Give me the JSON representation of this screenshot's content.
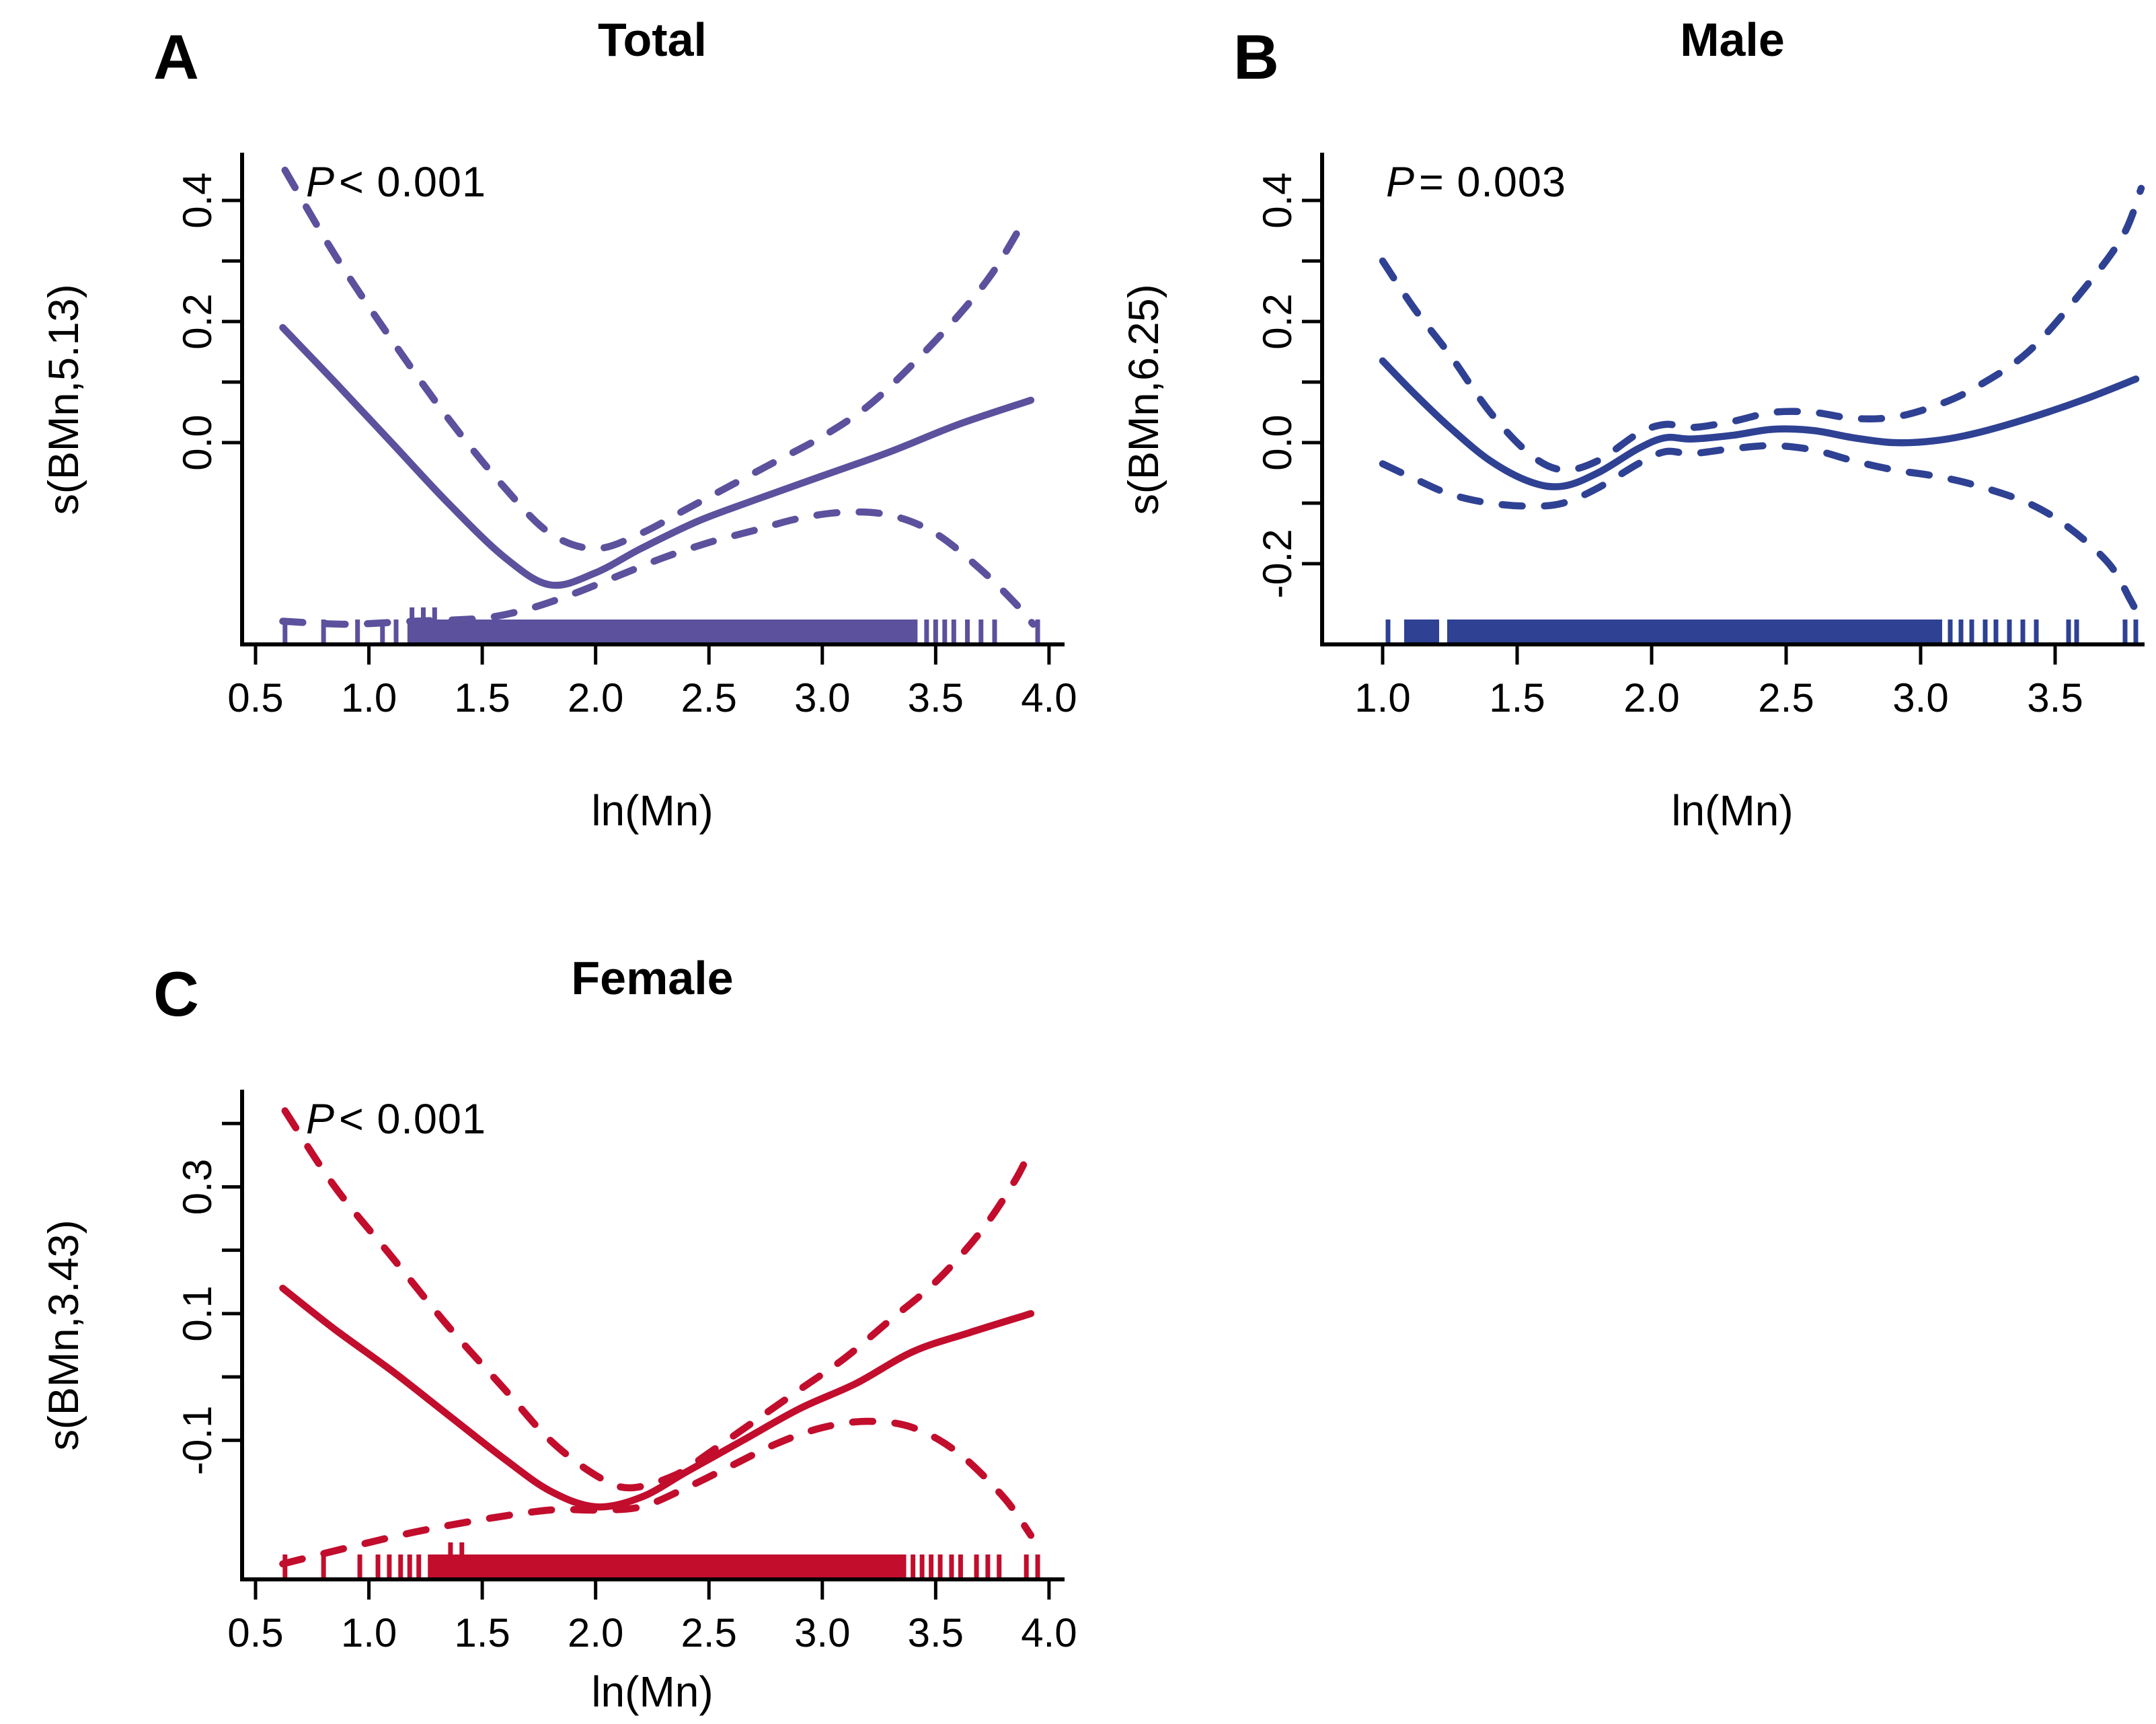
{
  "figure": {
    "background": "#ffffff"
  },
  "chart_data": [
    {
      "id": "total",
      "panel_letter": "A",
      "title": "Total",
      "p_annotation": {
        "var": "P",
        "rest": "< 0.001"
      },
      "type": "line",
      "xlabel": "ln(Mn)",
      "ylabel": "s(BMn,5.13)",
      "color": "#5b519d",
      "xlim": [
        0.4407,
        4.0596
      ],
      "ylim": [
        -0.3333,
        0.4756
      ],
      "grid": false,
      "legend": "none",
      "x_ticks": [
        {
          "v": 0.5,
          "label": "0.5"
        },
        {
          "v": 1.0,
          "label": "1.0"
        },
        {
          "v": 1.5,
          "label": "1.5"
        },
        {
          "v": 2.0,
          "label": "2.0"
        },
        {
          "v": 2.5,
          "label": "2.5"
        },
        {
          "v": 3.0,
          "label": "3.0"
        },
        {
          "v": 3.5,
          "label": "3.5"
        },
        {
          "v": 4.0,
          "label": "4.0"
        }
      ],
      "y_ticks": [
        {
          "v": 0.0,
          "label": "0.0"
        },
        {
          "v": 0.1
        },
        {
          "v": 0.2,
          "label": "0.2"
        },
        {
          "v": 0.3
        },
        {
          "v": 0.4,
          "label": "0.4"
        }
      ],
      "series": [
        {
          "name": "smooth_fit",
          "style": "solid",
          "points": [
            [
              0.62,
              0.19
            ],
            [
              0.85,
              0.1
            ],
            [
              1.1,
              0.0
            ],
            [
              1.35,
              -0.1
            ],
            [
              1.6,
              -0.19
            ],
            [
              1.8,
              -0.235
            ],
            [
              2.0,
              -0.215
            ],
            [
              2.2,
              -0.175
            ],
            [
              2.45,
              -0.13
            ],
            [
              2.7,
              -0.095
            ],
            [
              3.0,
              -0.055
            ],
            [
              3.3,
              -0.015
            ],
            [
              3.6,
              0.03
            ],
            [
              3.92,
              0.07
            ]
          ]
        },
        {
          "name": "upper_95ci",
          "style": "dashed",
          "points": [
            [
              0.63,
              0.45
            ],
            [
              0.85,
              0.31
            ],
            [
              1.1,
              0.17
            ],
            [
              1.35,
              0.04
            ],
            [
              1.6,
              -0.075
            ],
            [
              1.8,
              -0.15
            ],
            [
              2.0,
              -0.175
            ],
            [
              2.2,
              -0.15
            ],
            [
              2.4,
              -0.11
            ],
            [
              2.6,
              -0.07
            ],
            [
              2.8,
              -0.03
            ],
            [
              3.0,
              0.01
            ],
            [
              3.2,
              0.06
            ],
            [
              3.4,
              0.13
            ],
            [
              3.6,
              0.21
            ],
            [
              3.75,
              0.28
            ],
            [
              3.88,
              0.36
            ]
          ]
        },
        {
          "name": "lower_95ci",
          "style": "dashed",
          "points": [
            [
              0.62,
              -0.295
            ],
            [
              0.9,
              -0.3
            ],
            [
              1.2,
              -0.295
            ],
            [
              1.5,
              -0.29
            ],
            [
              1.7,
              -0.275
            ],
            [
              1.9,
              -0.25
            ],
            [
              2.1,
              -0.22
            ],
            [
              2.3,
              -0.19
            ],
            [
              2.5,
              -0.165
            ],
            [
              2.7,
              -0.145
            ],
            [
              2.9,
              -0.125
            ],
            [
              3.1,
              -0.115
            ],
            [
              3.3,
              -0.12
            ],
            [
              3.5,
              -0.15
            ],
            [
              3.7,
              -0.21
            ],
            [
              3.85,
              -0.265
            ],
            [
              3.93,
              -0.3
            ]
          ]
        }
      ],
      "rug": {
        "bands": [
          [
            1.17,
            3.42
          ]
        ],
        "marks": [
          0.63,
          0.8,
          0.95,
          1.06,
          1.12,
          3.46,
          3.5,
          3.54,
          3.58,
          3.64,
          3.7,
          3.76,
          3.95
        ],
        "tall_marks": [
          1.19,
          1.24,
          1.29
        ]
      }
    },
    {
      "id": "male",
      "panel_letter": "B",
      "title": "Male",
      "p_annotation": {
        "var": "P",
        "rest": "= 0.003"
      },
      "type": "line",
      "xlabel": "ln(Mn)",
      "ylabel": "s(BMn,6.25)",
      "color": "#2e4193",
      "xlim": [
        0.775,
        3.825
      ],
      "ylim": [
        -0.3333,
        0.4756
      ],
      "grid": false,
      "legend": "none",
      "x_ticks": [
        {
          "v": 1.0,
          "label": "1.0"
        },
        {
          "v": 1.5,
          "label": "1.5"
        },
        {
          "v": 2.0,
          "label": "2.0"
        },
        {
          "v": 2.5,
          "label": "2.5"
        },
        {
          "v": 3.0,
          "label": "3.0"
        },
        {
          "v": 3.5,
          "label": "3.5"
        }
      ],
      "y_ticks": [
        {
          "v": -0.2,
          "label": "-0.2"
        },
        {
          "v": -0.1
        },
        {
          "v": 0.0,
          "label": "0.0"
        },
        {
          "v": 0.1
        },
        {
          "v": 0.2,
          "label": "0.2"
        },
        {
          "v": 0.3
        },
        {
          "v": 0.4,
          "label": "0.4"
        }
      ],
      "series": [
        {
          "name": "smooth_fit",
          "style": "solid",
          "points": [
            [
              1.0,
              0.135
            ],
            [
              1.12,
              0.08
            ],
            [
              1.25,
              0.025
            ],
            [
              1.4,
              -0.03
            ],
            [
              1.55,
              -0.065
            ],
            [
              1.67,
              -0.072
            ],
            [
              1.8,
              -0.05
            ],
            [
              1.95,
              -0.01
            ],
            [
              2.05,
              0.008
            ],
            [
              2.15,
              0.006
            ],
            [
              2.3,
              0.012
            ],
            [
              2.45,
              0.022
            ],
            [
              2.6,
              0.02
            ],
            [
              2.75,
              0.008
            ],
            [
              2.9,
              0.0
            ],
            [
              3.05,
              0.003
            ],
            [
              3.2,
              0.015
            ],
            [
              3.4,
              0.04
            ],
            [
              3.6,
              0.07
            ],
            [
              3.8,
              0.105
            ]
          ]
        },
        {
          "name": "upper_95ci",
          "style": "dashed",
          "points": [
            [
              1.0,
              0.3
            ],
            [
              1.12,
              0.22
            ],
            [
              1.25,
              0.145
            ],
            [
              1.4,
              0.05
            ],
            [
              1.55,
              -0.02
            ],
            [
              1.67,
              -0.045
            ],
            [
              1.8,
              -0.03
            ],
            [
              1.95,
              0.015
            ],
            [
              2.05,
              0.03
            ],
            [
              2.15,
              0.025
            ],
            [
              2.3,
              0.035
            ],
            [
              2.45,
              0.05
            ],
            [
              2.6,
              0.05
            ],
            [
              2.75,
              0.04
            ],
            [
              2.9,
              0.042
            ],
            [
              3.05,
              0.06
            ],
            [
              3.2,
              0.09
            ],
            [
              3.4,
              0.15
            ],
            [
              3.6,
              0.25
            ],
            [
              3.75,
              0.34
            ],
            [
              3.82,
              0.42
            ]
          ]
        },
        {
          "name": "lower_95ci",
          "style": "dashed",
          "points": [
            [
              1.0,
              -0.035
            ],
            [
              1.12,
              -0.06
            ],
            [
              1.25,
              -0.085
            ],
            [
              1.4,
              -0.1
            ],
            [
              1.55,
              -0.105
            ],
            [
              1.67,
              -0.1
            ],
            [
              1.8,
              -0.075
            ],
            [
              1.95,
              -0.035
            ],
            [
              2.05,
              -0.015
            ],
            [
              2.15,
              -0.018
            ],
            [
              2.3,
              -0.01
            ],
            [
              2.45,
              -0.005
            ],
            [
              2.6,
              -0.012
            ],
            [
              2.75,
              -0.03
            ],
            [
              2.9,
              -0.045
            ],
            [
              3.05,
              -0.055
            ],
            [
              3.2,
              -0.07
            ],
            [
              3.4,
              -0.1
            ],
            [
              3.55,
              -0.14
            ],
            [
              3.7,
              -0.2
            ],
            [
              3.78,
              -0.26
            ],
            [
              3.82,
              -0.295
            ]
          ]
        }
      ],
      "rug": {
        "bands": [
          [
            1.08,
            1.21
          ],
          [
            1.24,
            3.08
          ]
        ],
        "marks": [
          1.02,
          3.11,
          3.15,
          3.19,
          3.24,
          3.28,
          3.33,
          3.38,
          3.43,
          3.55,
          3.58,
          3.76,
          3.8
        ],
        "tall_marks": []
      }
    },
    {
      "id": "female",
      "panel_letter": "C",
      "title": "Female",
      "p_annotation": {
        "var": "P",
        "rest": "< 0.001"
      },
      "type": "line",
      "xlabel": "ln(Mn)",
      "ylabel": "s(BMn,3.43)",
      "color": "#c20d2d",
      "xlim": [
        0.4407,
        4.0596
      ],
      "ylim": [
        -0.3195,
        0.4502
      ],
      "grid": false,
      "legend": "none",
      "x_ticks": [
        {
          "v": 0.5,
          "label": "0.5"
        },
        {
          "v": 1.0,
          "label": "1.0"
        },
        {
          "v": 1.5,
          "label": "1.5"
        },
        {
          "v": 2.0,
          "label": "2.0"
        },
        {
          "v": 2.5,
          "label": "2.5"
        },
        {
          "v": 3.0,
          "label": "3.0"
        },
        {
          "v": 3.5,
          "label": "3.5"
        },
        {
          "v": 4.0,
          "label": "4.0"
        }
      ],
      "y_ticks": [
        {
          "v": -0.1,
          "label": "-0.1"
        },
        {
          "v": 0.0
        },
        {
          "v": 0.1,
          "label": "0.1"
        },
        {
          "v": 0.2
        },
        {
          "v": 0.3,
          "label": "0.3"
        },
        {
          "v": 0.4
        }
      ],
      "series": [
        {
          "name": "smooth_fit",
          "style": "solid",
          "points": [
            [
              0.62,
              0.14
            ],
            [
              0.85,
              0.075
            ],
            [
              1.1,
              0.01
            ],
            [
              1.35,
              -0.06
            ],
            [
              1.6,
              -0.13
            ],
            [
              1.8,
              -0.18
            ],
            [
              2.0,
              -0.205
            ],
            [
              2.2,
              -0.19
            ],
            [
              2.4,
              -0.15
            ],
            [
              2.65,
              -0.1
            ],
            [
              2.9,
              -0.05
            ],
            [
              3.15,
              -0.01
            ],
            [
              3.4,
              0.04
            ],
            [
              3.65,
              0.07
            ],
            [
              3.92,
              0.1
            ]
          ]
        },
        {
          "name": "upper_95ci",
          "style": "dashed",
          "points": [
            [
              0.63,
              0.42
            ],
            [
              0.85,
              0.3
            ],
            [
              1.1,
              0.19
            ],
            [
              1.35,
              0.08
            ],
            [
              1.6,
              -0.02
            ],
            [
              1.8,
              -0.1
            ],
            [
              2.0,
              -0.155
            ],
            [
              2.15,
              -0.175
            ],
            [
              2.35,
              -0.155
            ],
            [
              2.5,
              -0.12
            ],
            [
              2.7,
              -0.07
            ],
            [
              2.9,
              -0.02
            ],
            [
              3.1,
              0.03
            ],
            [
              3.3,
              0.09
            ],
            [
              3.5,
              0.15
            ],
            [
              3.7,
              0.23
            ],
            [
              3.85,
              0.31
            ],
            [
              3.92,
              0.36
            ]
          ]
        },
        {
          "name": "lower_95ci",
          "style": "dashed",
          "points": [
            [
              0.62,
              -0.295
            ],
            [
              0.9,
              -0.27
            ],
            [
              1.2,
              -0.245
            ],
            [
              1.5,
              -0.225
            ],
            [
              1.8,
              -0.21
            ],
            [
              2.0,
              -0.21
            ],
            [
              2.2,
              -0.205
            ],
            [
              2.4,
              -0.175
            ],
            [
              2.6,
              -0.14
            ],
            [
              2.8,
              -0.105
            ],
            [
              3.0,
              -0.08
            ],
            [
              3.2,
              -0.07
            ],
            [
              3.4,
              -0.08
            ],
            [
              3.6,
              -0.12
            ],
            [
              3.8,
              -0.19
            ],
            [
              3.92,
              -0.25
            ]
          ]
        }
      ],
      "rug": {
        "bands": [
          [
            1.26,
            3.37
          ]
        ],
        "marks": [
          0.63,
          0.8,
          0.96,
          1.04,
          1.09,
          1.14,
          1.18,
          1.22,
          3.4,
          3.44,
          3.48,
          3.52,
          3.57,
          3.61,
          3.68,
          3.73,
          3.78,
          3.9,
          3.95
        ],
        "tall_marks": [
          1.36,
          1.41
        ]
      }
    }
  ]
}
